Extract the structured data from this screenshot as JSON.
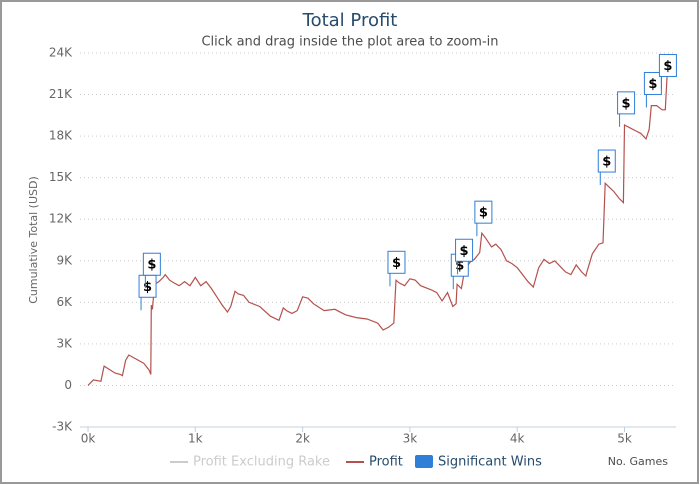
{
  "chart_data": {
    "type": "line",
    "title": "Total Profit",
    "subtitle": "Click and drag inside the plot area to zoom-in",
    "y_label": "Cumulative Total (USD)",
    "x_label": "No. Games",
    "xlim": [
      -75,
      5480
    ],
    "xticks": [
      {
        "value": 0,
        "label": "0k"
      },
      {
        "value": 1000,
        "label": "1k"
      },
      {
        "value": 2000,
        "label": "2k"
      },
      {
        "value": 3000,
        "label": "3k"
      },
      {
        "value": 4000,
        "label": "4k"
      },
      {
        "value": 5000,
        "label": "5k"
      }
    ],
    "ylim": [
      -3000,
      24000
    ],
    "yticks": [
      {
        "value": -3000,
        "label": "-3K"
      },
      0,
      {
        "value": 3000,
        "label": "3K"
      },
      {
        "value": 6000,
        "label": "6K"
      },
      {
        "value": 9000,
        "label": "9K"
      },
      {
        "value": 12000,
        "label": "12K"
      },
      {
        "value": 15000,
        "label": "15K"
      },
      {
        "value": 18000,
        "label": "18K"
      },
      {
        "value": 21000,
        "label": "21K"
      },
      {
        "value": 24000,
        "label": "24K"
      }
    ],
    "grid": true,
    "series": [
      {
        "name": "Profit Excluding Rake",
        "color": "#cccccc"
      },
      {
        "name": "Profit",
        "color": "#b5514d",
        "x": [
          0,
          50,
          120,
          150,
          250,
          300,
          320,
          350,
          380,
          450,
          520,
          570,
          585,
          590,
          600,
          620,
          660,
          700,
          720,
          760,
          800,
          850,
          900,
          950,
          1000,
          1050,
          1100,
          1150,
          1200,
          1250,
          1300,
          1330,
          1370,
          1400,
          1450,
          1500,
          1600,
          1700,
          1780,
          1820,
          1850,
          1900,
          1950,
          2000,
          2050,
          2100,
          2200,
          2300,
          2400,
          2500,
          2600,
          2700,
          2750,
          2800,
          2850,
          2870,
          2900,
          2950,
          3000,
          3050,
          3100,
          3200,
          3250,
          3300,
          3350,
          3400,
          3430,
          3440,
          3480,
          3500,
          3520,
          3560,
          3600,
          3650,
          3670,
          3700,
          3760,
          3800,
          3850,
          3900,
          3950,
          4000,
          4050,
          4100,
          4150,
          4200,
          4250,
          4300,
          4350,
          4400,
          4450,
          4500,
          4550,
          4600,
          4640,
          4650,
          4700,
          4760,
          4800,
          4820,
          4860,
          4900,
          4950,
          4990,
          5000,
          5050,
          5100,
          5150,
          5200,
          5230,
          5250,
          5300,
          5350,
          5380,
          5400,
          5420
        ],
        "values": [
          0,
          400,
          300,
          1400,
          900,
          800,
          700,
          1800,
          2200,
          1900,
          1600,
          1100,
          800,
          5800,
          5500,
          7300,
          7500,
          7800,
          8000,
          7600,
          7400,
          7200,
          7500,
          7200,
          7800,
          7200,
          7500,
          7000,
          6400,
          5800,
          5300,
          5700,
          6800,
          6600,
          6500,
          6000,
          5700,
          5000,
          4700,
          5600,
          5400,
          5200,
          5400,
          6400,
          6300,
          5900,
          5400,
          5500,
          5100,
          4900,
          4800,
          4500,
          4000,
          4200,
          4500,
          7600,
          7400,
          7200,
          7700,
          7600,
          7200,
          6900,
          6700,
          6100,
          6700,
          5700,
          5900,
          7300,
          7000,
          7900,
          8400,
          8900,
          9100,
          9600,
          11000,
          10700,
          10000,
          10200,
          9800,
          9000,
          8800,
          8500,
          8000,
          7500,
          7100,
          8500,
          9100,
          8800,
          9000,
          8600,
          8200,
          8000,
          8700,
          8200,
          7900,
          8200,
          9500,
          10200,
          10300,
          14600,
          14300,
          14000,
          13500,
          13200,
          18800,
          18600,
          18400,
          18200,
          17800,
          18500,
          20200,
          20200,
          19900,
          19900,
          22800,
          23000
        ]
      }
    ],
    "flags": {
      "name": "Significant Wins",
      "color": "#2f7ed8",
      "label": "$",
      "x": [
        550,
        590,
        2870,
        3460,
        3500,
        3680,
        4830,
        5010,
        5260,
        5400
      ],
      "y": [
        7160,
        8750,
        8890,
        8680,
        9760,
        12510,
        16200,
        20400,
        21800,
        23100
      ]
    }
  }
}
